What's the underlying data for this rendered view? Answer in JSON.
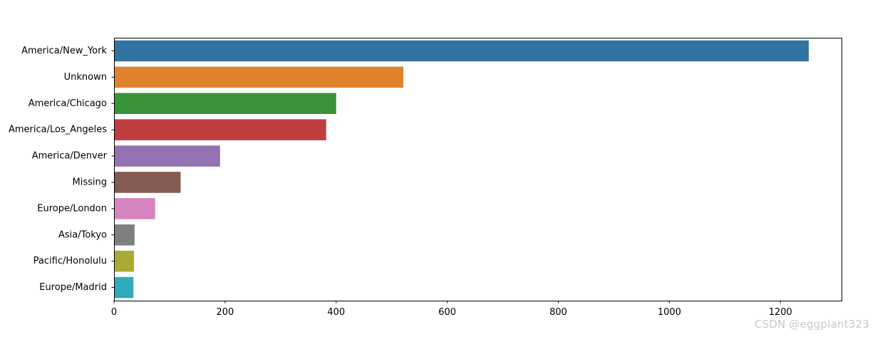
{
  "chart_data": {
    "type": "bar",
    "orientation": "horizontal",
    "title": "",
    "xlabel": "",
    "ylabel": "",
    "xlim": [
      0,
      1310
    ],
    "xticks": [
      0,
      200,
      400,
      600,
      800,
      1000,
      1200
    ],
    "grid": false,
    "categories": [
      "America/New_York",
      "Unknown",
      "America/Chicago",
      "America/Los_Angeles",
      "America/Denver",
      "Missing",
      "Europe/London",
      "Asia/Tokyo",
      "Pacific/Honolulu",
      "Europe/Madrid"
    ],
    "values": [
      1251,
      521,
      400,
      382,
      191,
      120,
      74,
      37,
      36,
      35
    ],
    "colors": [
      "#3274a1",
      "#e1812c",
      "#3a923a",
      "#c03d3e",
      "#9372b2",
      "#845b53",
      "#d684bd",
      "#7f7f7f",
      "#a9aa35",
      "#2eaab8"
    ]
  },
  "watermark": "CSDN @eggplant323"
}
